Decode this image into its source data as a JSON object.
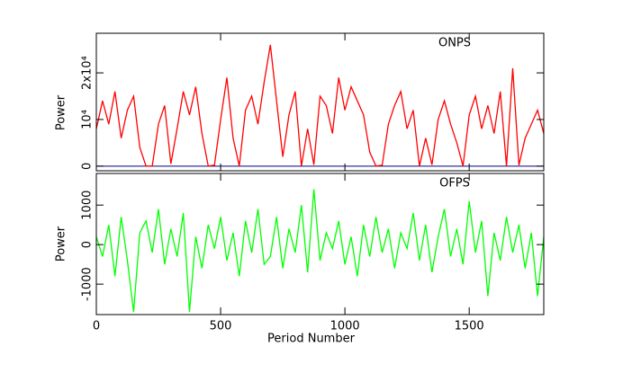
{
  "chart_data": [
    {
      "type": "line",
      "annotation": "ONPS",
      "ylabel": "Power",
      "x": [
        0,
        25,
        50,
        75,
        100,
        125,
        150,
        175,
        200,
        225,
        250,
        275,
        300,
        325,
        350,
        375,
        400,
        425,
        450,
        475,
        500,
        525,
        550,
        575,
        600,
        625,
        650,
        675,
        700,
        725,
        750,
        775,
        800,
        825,
        850,
        875,
        900,
        925,
        950,
        975,
        1000,
        1025,
        1050,
        1075,
        1100,
        1125,
        1150,
        1175,
        1200,
        1225,
        1250,
        1275,
        1300,
        1325,
        1350,
        1375,
        1400,
        1425,
        1450,
        1475,
        1500,
        1525,
        1550,
        1575,
        1600,
        1625,
        1650,
        1675,
        1700,
        1725,
        1750,
        1775,
        1800
      ],
      "series": [
        {
          "color": "#ff0000",
          "values": [
            8000,
            14000,
            9000,
            16000,
            6000,
            12000,
            15000,
            4000,
            0,
            0,
            9000,
            13000,
            500,
            8000,
            16000,
            11000,
            17000,
            7000,
            0,
            200,
            10000,
            19000,
            6000,
            0,
            12000,
            15000,
            9000,
            18000,
            26000,
            14000,
            2000,
            11000,
            16000,
            0,
            8000,
            300,
            15000,
            13000,
            7000,
            19000,
            12000,
            17000,
            14000,
            11000,
            3000,
            0,
            200,
            9000,
            13000,
            16000,
            8000,
            12000,
            0,
            6000,
            300,
            10000,
            14000,
            9000,
            5000,
            0,
            11000,
            15000,
            8000,
            13000,
            7000,
            16000,
            0,
            21000,
            200,
            6000,
            9000,
            12000,
            7000
          ]
        }
      ],
      "reference_line": {
        "value": 0,
        "color": "#000080"
      },
      "xlim": [
        0,
        1800
      ],
      "ylim": [
        -1000,
        28500
      ],
      "yticks": [
        0,
        {
          "value": 10000,
          "label": "10⁴"
        },
        {
          "value": 20000,
          "label": "2x10⁴"
        }
      ]
    },
    {
      "type": "line",
      "annotation": "OFPS",
      "ylabel": "Power",
      "xlabel": "Period Number",
      "x": [
        0,
        25,
        50,
        75,
        100,
        125,
        150,
        175,
        200,
        225,
        250,
        275,
        300,
        325,
        350,
        375,
        400,
        425,
        450,
        475,
        500,
        525,
        550,
        575,
        600,
        625,
        650,
        675,
        700,
        725,
        750,
        775,
        800,
        825,
        850,
        875,
        900,
        925,
        950,
        975,
        1000,
        1025,
        1050,
        1075,
        1100,
        1125,
        1150,
        1175,
        1200,
        1225,
        1250,
        1275,
        1300,
        1325,
        1350,
        1375,
        1400,
        1425,
        1450,
        1475,
        1500,
        1525,
        1550,
        1575,
        1600,
        1625,
        1650,
        1675,
        1700,
        1725,
        1750,
        1775,
        1800
      ],
      "series": [
        {
          "color": "#00ff00",
          "values": [
            200,
            -300,
            500,
            -800,
            700,
            -400,
            -1700,
            300,
            600,
            -200,
            900,
            -500,
            400,
            -300,
            800,
            -1700,
            200,
            -600,
            500,
            -100,
            700,
            -400,
            300,
            -800,
            600,
            -200,
            900,
            -500,
            -300,
            700,
            -600,
            400,
            -200,
            1000,
            -700,
            1400,
            -400,
            300,
            -100,
            600,
            -500,
            200,
            -800,
            500,
            -300,
            700,
            -200,
            400,
            -600,
            300,
            -100,
            800,
            -400,
            500,
            -700,
            200,
            900,
            -300,
            400,
            -500,
            1100,
            -200,
            600,
            -1300,
            300,
            -400,
            700,
            -200,
            500,
            -600,
            300,
            -1300,
            200
          ]
        }
      ],
      "xlim": [
        0,
        1800
      ],
      "ylim": [
        -1770,
        1800
      ],
      "xticks": [
        0,
        500,
        1000,
        1500
      ],
      "yticks": [
        -1000,
        0,
        1000
      ]
    }
  ]
}
